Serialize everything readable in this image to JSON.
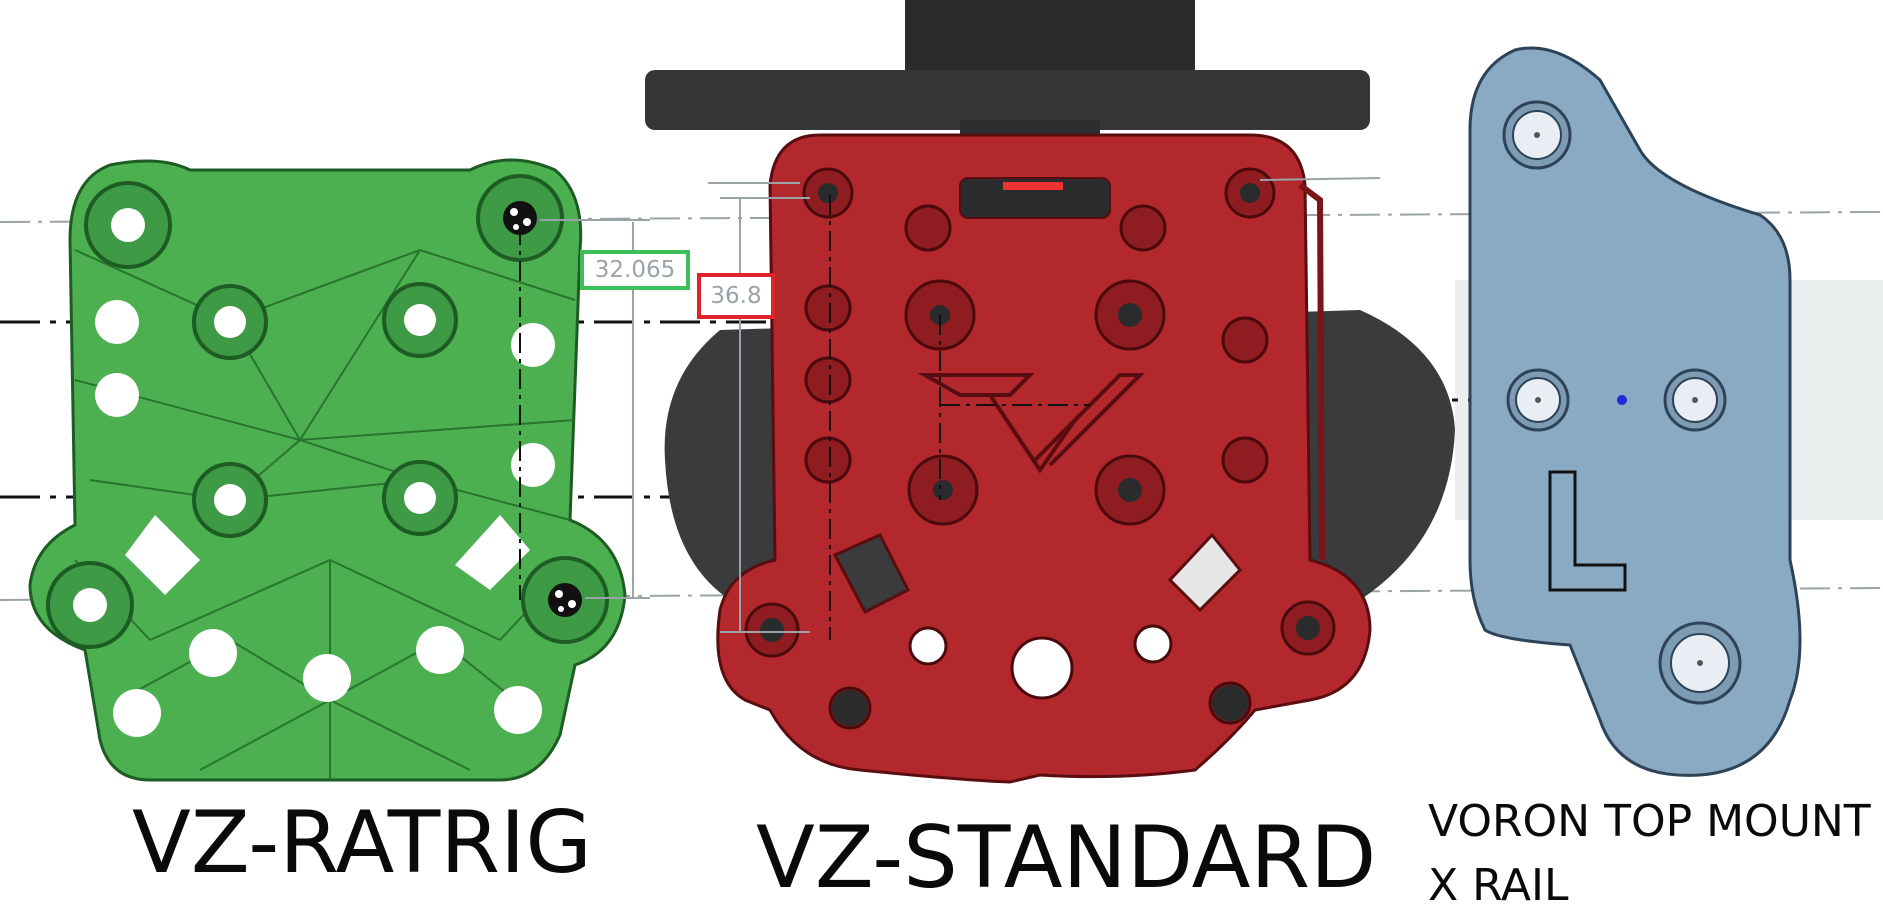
{
  "labels": {
    "ratrig": "VZ-RATRIG",
    "standard": "VZ-STANDARD",
    "voron_line1": "VORON TOP MOUNT",
    "voron_line2": "X RAIL"
  },
  "dimensions": {
    "green": "32.065",
    "red": "36.8"
  },
  "colors": {
    "ratrig_part": "#4caf50",
    "standard_part": "#b3282d",
    "voron_part": "#8aa9c2",
    "dim_green_border": "#3fbf5a",
    "dim_red_border": "#e0242c"
  }
}
